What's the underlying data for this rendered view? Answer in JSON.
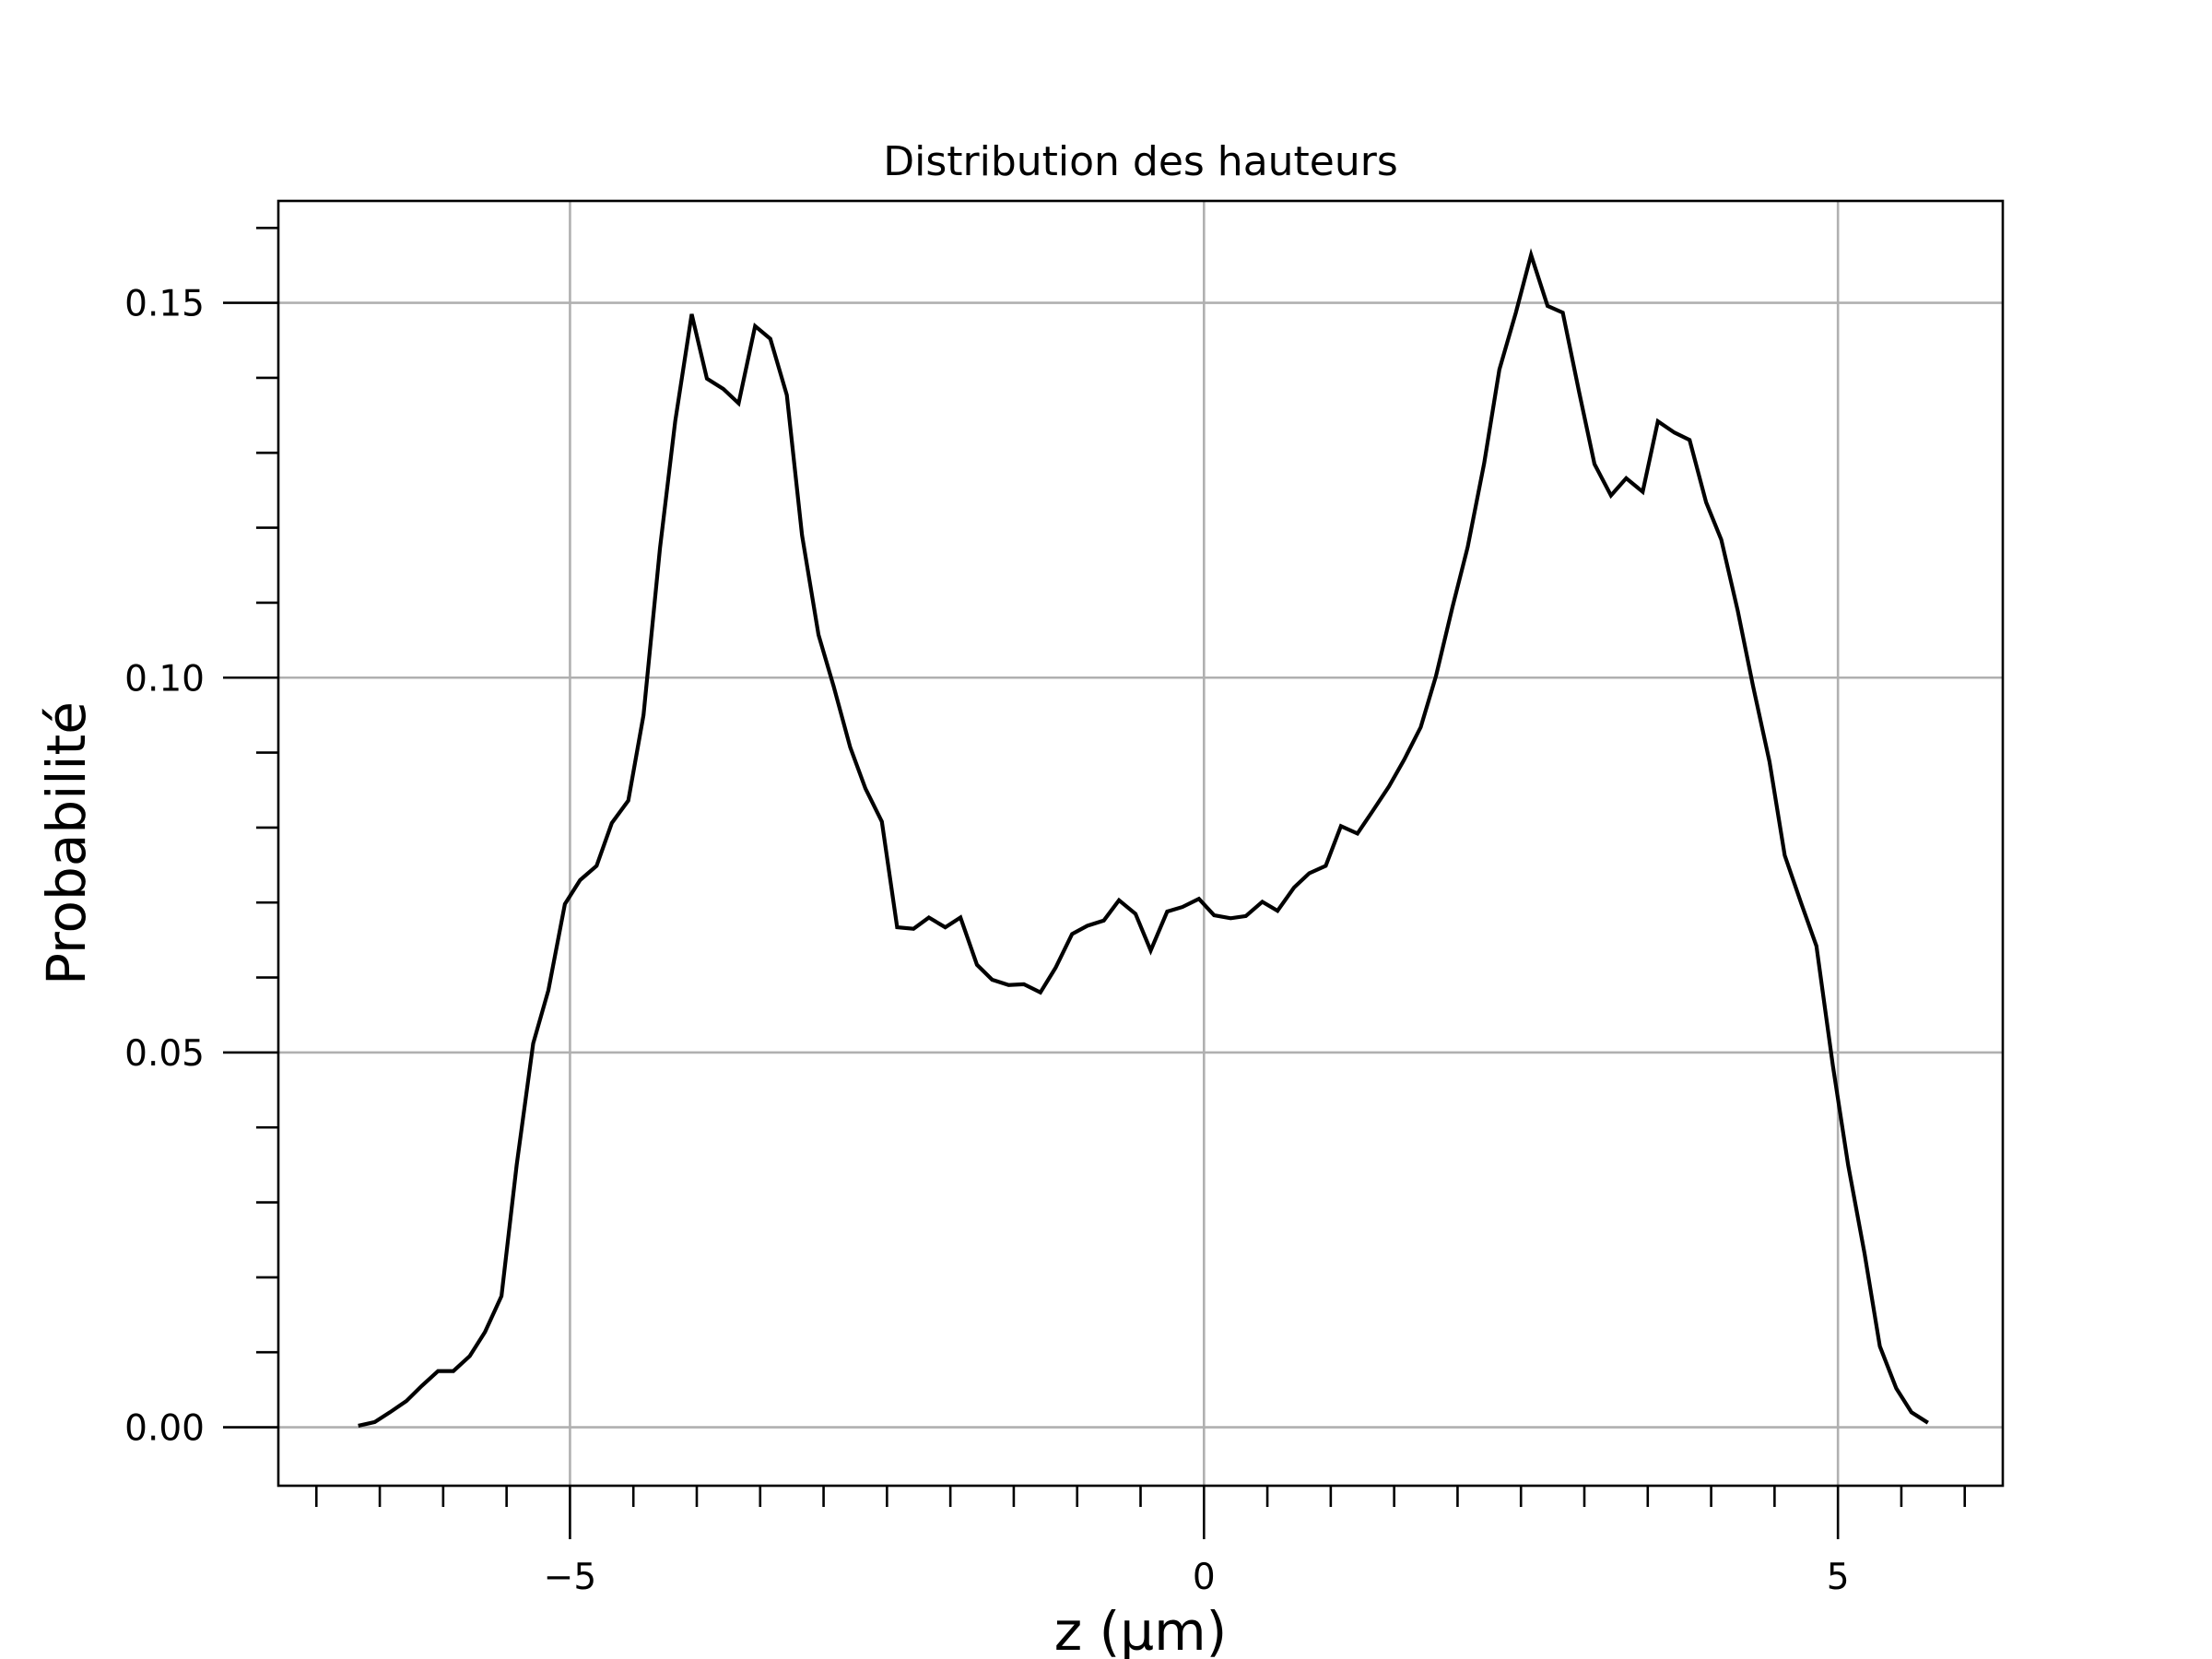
{
  "chart_data": {
    "type": "line",
    "title": "Distribution des hauteurs",
    "xlabel": "z (µm)",
    "ylabel": "Probabilité",
    "xlim": [
      -7.3,
      6.3
    ],
    "ylim": [
      -0.0078,
      0.1636
    ],
    "grid": true,
    "x_ticks": [
      {
        "value": -5,
        "label": "−5"
      },
      {
        "value": 0,
        "label": "0"
      },
      {
        "value": 5,
        "label": "5"
      }
    ],
    "y_ticks": [
      {
        "value": 0.0,
        "label": "0.00"
      },
      {
        "value": 0.05,
        "label": "0.05"
      },
      {
        "value": 0.1,
        "label": "0.10"
      },
      {
        "value": 0.15,
        "label": "0.15"
      }
    ],
    "series": [
      {
        "color": "#000000",
        "x": [
          -6.67,
          -6.54,
          -6.42,
          -6.29,
          -6.17,
          -6.04,
          -5.92,
          -5.79,
          -5.67,
          -5.54,
          -5.42,
          -5.29,
          -5.17,
          -5.04,
          -4.92,
          -4.79,
          -4.67,
          -4.54,
          -4.42,
          -4.29,
          -4.17,
          -4.04,
          -3.92,
          -3.79,
          -3.67,
          -3.54,
          -3.42,
          -3.29,
          -3.17,
          -3.04,
          -2.92,
          -2.79,
          -2.67,
          -2.54,
          -2.42,
          -2.29,
          -2.17,
          -2.04,
          -1.92,
          -1.79,
          -1.67,
          -1.54,
          -1.42,
          -1.29,
          -1.17,
          -1.04,
          -0.92,
          -0.79,
          -0.67,
          -0.54,
          -0.42,
          -0.29,
          -0.17,
          -0.04,
          0.08,
          0.21,
          0.33,
          0.46,
          0.58,
          0.71,
          0.83,
          0.96,
          1.08,
          1.21,
          1.33,
          1.46,
          1.58,
          1.71,
          1.83,
          1.96,
          2.08,
          2.21,
          2.33,
          2.46,
          2.58,
          2.71,
          2.83,
          2.96,
          3.08,
          3.21,
          3.33,
          3.46,
          3.58,
          3.71,
          3.83,
          3.96,
          4.08,
          4.21,
          4.33,
          4.46,
          4.58,
          4.71,
          4.83,
          4.96,
          5.08,
          5.21,
          5.33,
          5.46,
          5.58,
          5.71
        ],
        "y": [
          0.0002,
          0.0007,
          0.002,
          0.0035,
          0.0055,
          0.0075,
          0.0075,
          0.0095,
          0.0127,
          0.0175,
          0.035,
          0.0512,
          0.0583,
          0.0698,
          0.073,
          0.0749,
          0.0806,
          0.0836,
          0.095,
          0.1173,
          0.1342,
          0.1485,
          0.1399,
          0.1385,
          0.1366,
          0.1469,
          0.1452,
          0.1377,
          0.119,
          0.1057,
          0.0988,
          0.0907,
          0.0852,
          0.0808,
          0.0667,
          0.0665,
          0.068,
          0.0667,
          0.068,
          0.0617,
          0.0597,
          0.059,
          0.0591,
          0.058,
          0.0613,
          0.0658,
          0.0669,
          0.0676,
          0.0703,
          0.0685,
          0.0636,
          0.0688,
          0.0694,
          0.0705,
          0.0683,
          0.0679,
          0.0682,
          0.0701,
          0.0689,
          0.072,
          0.0739,
          0.0749,
          0.0802,
          0.0792,
          0.0822,
          0.0855,
          0.0891,
          0.0934,
          0.1002,
          0.1094,
          0.1174,
          0.1286,
          0.1411,
          0.1487,
          0.1564,
          0.1496,
          0.1487,
          0.138,
          0.1285,
          0.1243,
          0.1266,
          0.1248,
          0.1342,
          0.1327,
          0.1317,
          0.1234,
          0.1184,
          0.1089,
          0.0989,
          0.0888,
          0.0763,
          0.0699,
          0.0642,
          0.0482,
          0.035,
          0.0232,
          0.0108,
          0.0052,
          0.002,
          0.0006
        ]
      }
    ]
  }
}
